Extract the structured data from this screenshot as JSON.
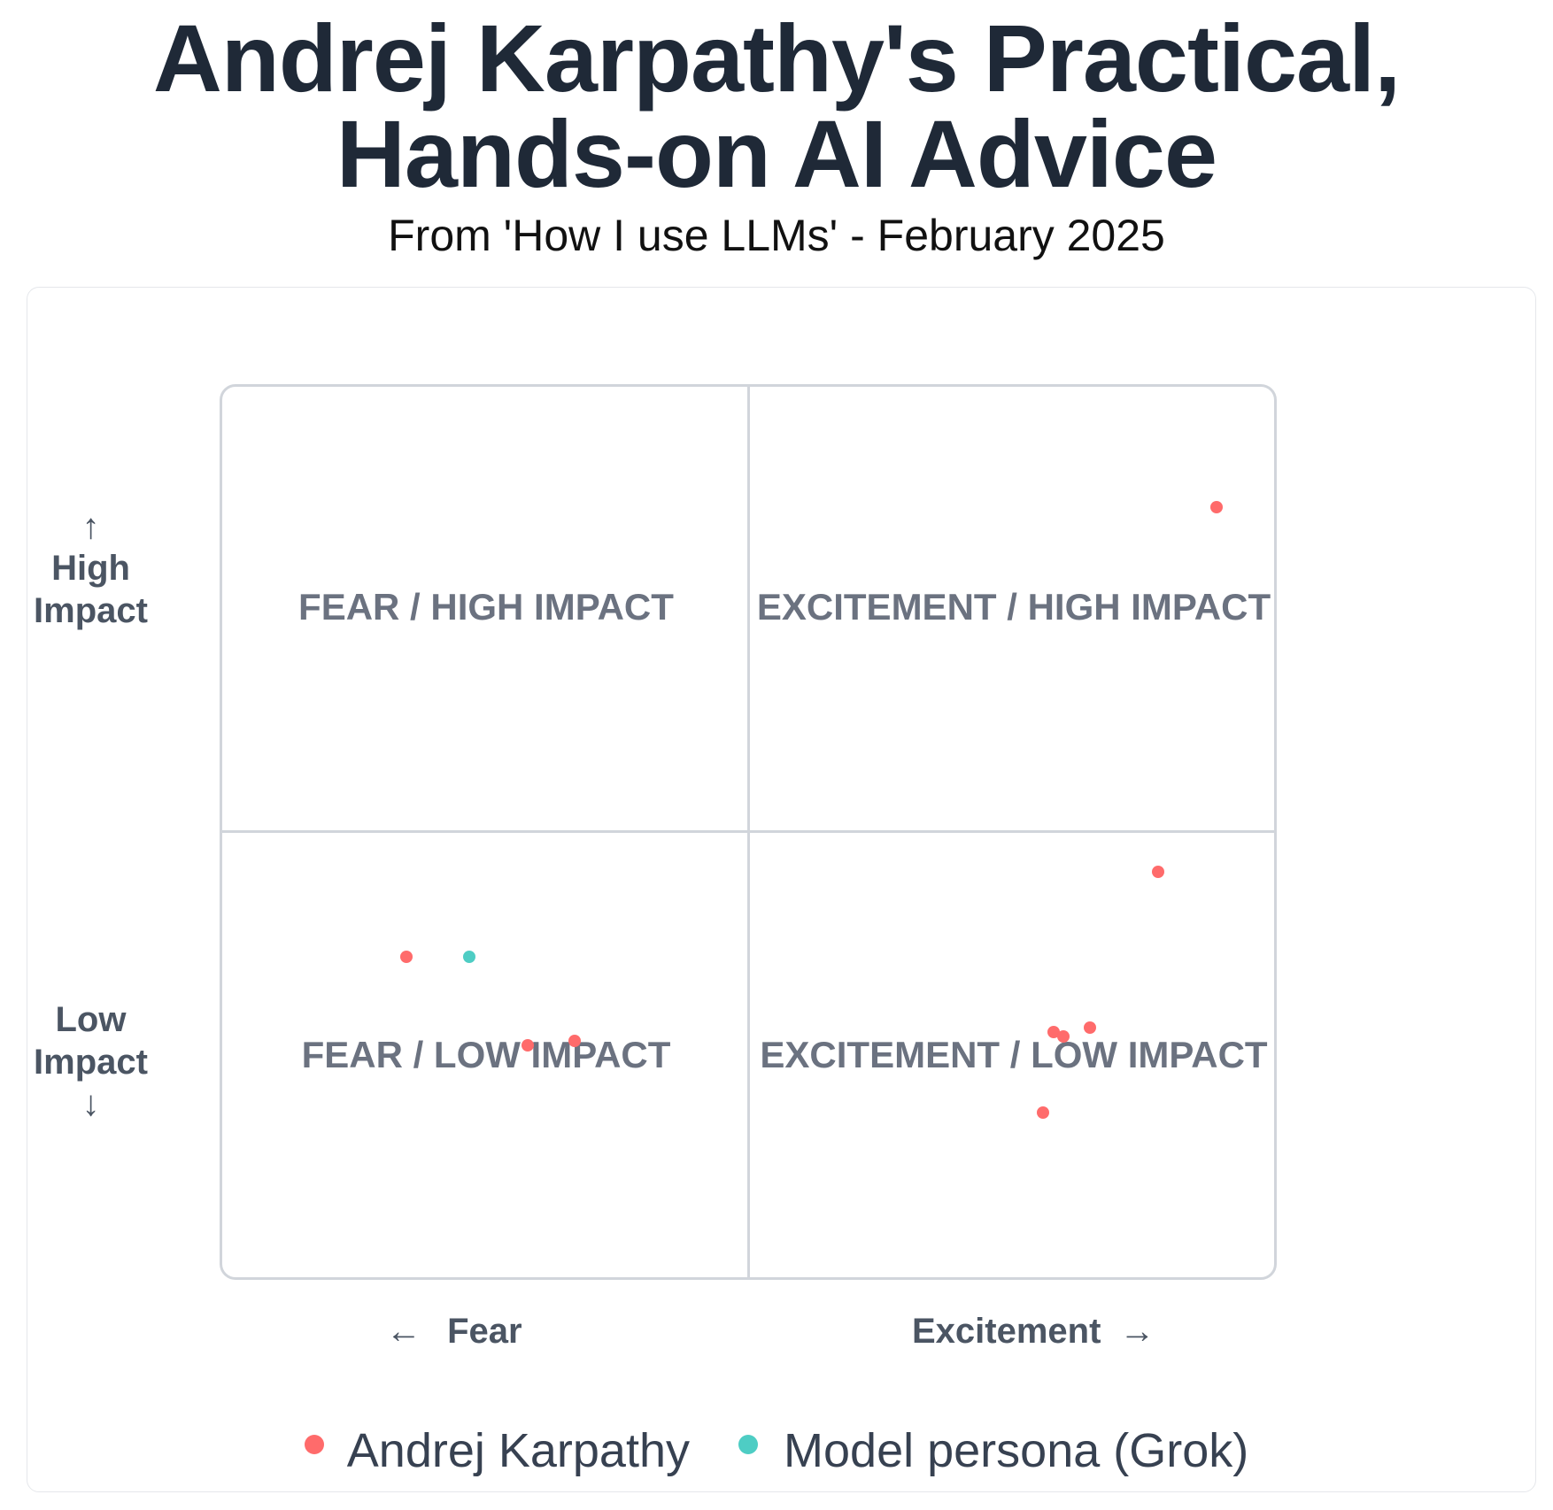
{
  "title_line1": "Andrej Karpathy's Practical,",
  "title_line2": "Hands-on AI Advice",
  "subtitle": "From 'How I use LLMs' - February 2025",
  "chart_data": {
    "type": "scatter",
    "xlabel_left": "Fear",
    "xlabel_right": "Excitement",
    "ylabel_top": "High Impact",
    "ylabel_bottom": "Low Impact",
    "xlim": [
      -1,
      1
    ],
    "ylim": [
      -1,
      1
    ],
    "quadrants": {
      "top_left": "FEAR / HIGH IMPACT",
      "top_right": "EXCITEMENT / HIGH IMPACT",
      "bottom_left": "FEAR / LOW IMPACT",
      "bottom_right": "EXCITEMENT / LOW IMPACT"
    },
    "series": [
      {
        "name": "Andrej Karpathy",
        "color": "#ff6b6b",
        "points": [
          {
            "x": 0.89,
            "y": 0.73
          },
          {
            "x": 0.78,
            "y": -0.09
          },
          {
            "x": -0.65,
            "y": -0.28
          },
          {
            "x": -0.42,
            "y": -0.48
          },
          {
            "x": -0.33,
            "y": -0.47
          },
          {
            "x": 0.58,
            "y": -0.45
          },
          {
            "x": 0.6,
            "y": -0.46
          },
          {
            "x": 0.65,
            "y": -0.44
          },
          {
            "x": 0.56,
            "y": -0.63
          }
        ]
      },
      {
        "name": "Model persona (Grok)",
        "color": "#4ecdc4",
        "points": [
          {
            "x": -0.53,
            "y": -0.28
          }
        ]
      }
    ]
  }
}
